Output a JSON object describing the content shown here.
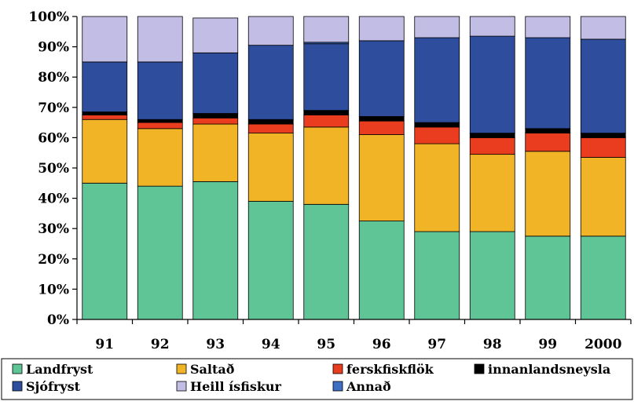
{
  "chart_data": {
    "type": "bar",
    "stacked": true,
    "percent": true,
    "categories": [
      "91",
      "92",
      "93",
      "94",
      "95",
      "96",
      "97",
      "98",
      "99",
      "2000"
    ],
    "ylim": [
      0,
      100
    ],
    "y_ticks": [
      "0%",
      "10%",
      "20%",
      "30%",
      "40%",
      "50%",
      "60%",
      "70%",
      "80%",
      "90%",
      "100%"
    ],
    "y_tick_values": [
      0,
      10,
      20,
      30,
      40,
      50,
      60,
      70,
      80,
      90,
      100
    ],
    "grid": false,
    "legend_position": "bottom",
    "series": [
      {
        "name": "Landfryst",
        "color": "#5fc496",
        "values": [
          45,
          44,
          45.5,
          39,
          38,
          32.5,
          29,
          29,
          27.5,
          27.5
        ]
      },
      {
        "name": "Saltað",
        "color": "#f2b427",
        "values": [
          21,
          19,
          19,
          22.5,
          25.5,
          28.5,
          29,
          25.5,
          28,
          26
        ]
      },
      {
        "name": "ferskfiskflök",
        "color": "#ea3c1e",
        "values": [
          1.5,
          2,
          2,
          3,
          4,
          4.5,
          5.5,
          5.5,
          6,
          6.5
        ]
      },
      {
        "name": "innanlandsneysla",
        "color": "#000000",
        "values": [
          1,
          1,
          1.5,
          1.5,
          1.5,
          1.5,
          1.5,
          1.5,
          1.5,
          1.5
        ]
      },
      {
        "name": "Sjófryst",
        "color": "#2f4d9d",
        "values": [
          16.5,
          19,
          20,
          24.5,
          22,
          25,
          28,
          32,
          30,
          31
        ]
      },
      {
        "name": "Annað",
        "color": "#3e6fc2",
        "values": [
          0,
          0,
          0,
          0,
          0.5,
          0,
          0,
          0,
          0,
          0
        ]
      },
      {
        "name": "Heill ísfiskur",
        "color": "#c2bde4",
        "values": [
          15,
          15,
          11.5,
          9.5,
          8.5,
          8,
          7,
          6.5,
          7,
          7.5
        ]
      }
    ],
    "legend": [
      {
        "name": "Landfryst",
        "color": "#5fc496",
        "icon": "green-square-icon"
      },
      {
        "name": "Saltað",
        "color": "#f2b427",
        "icon": "yellow-square-icon"
      },
      {
        "name": "ferskfiskflök",
        "color": "#ea3c1e",
        "icon": "red-square-icon"
      },
      {
        "name": "innanlandsneysla",
        "color": "#000000",
        "icon": "black-square-icon"
      },
      {
        "name": "Sjófryst",
        "color": "#2f4d9d",
        "icon": "dark-blue-square-icon"
      },
      {
        "name": "Heill ísfiskur",
        "color": "#c2bde4",
        "icon": "lavender-square-icon"
      },
      {
        "name": "Annað",
        "color": "#3e6fc2",
        "icon": "blue-square-icon"
      }
    ]
  }
}
